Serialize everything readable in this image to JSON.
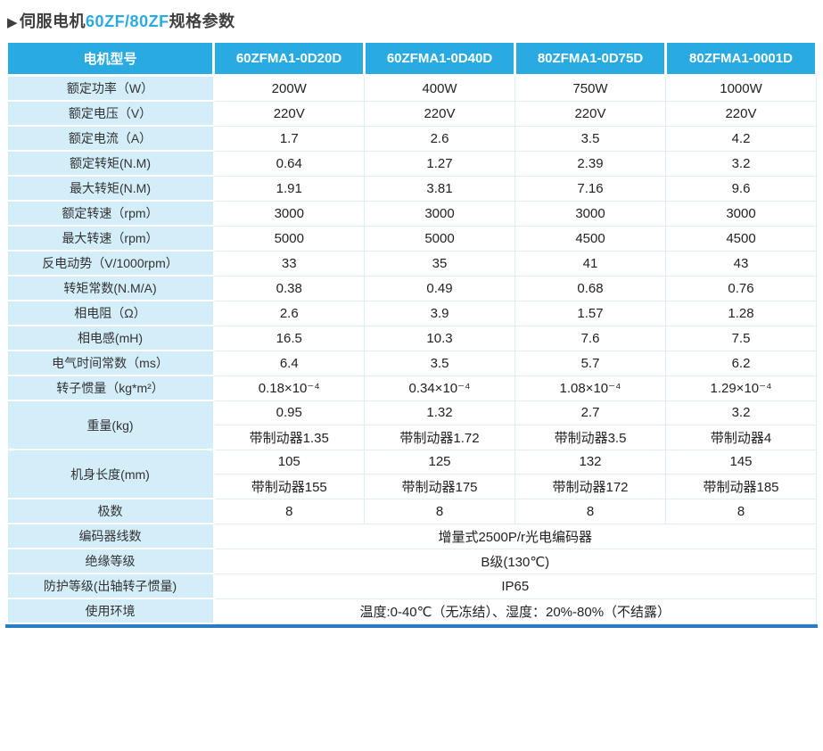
{
  "title": {
    "arrow": "▶",
    "part1": "伺服电机",
    "accent": "60ZF/80ZF",
    "part2": "规格参数"
  },
  "colors": {
    "accent": "#29abe2",
    "header_bg": "#29abe2",
    "label_bg": "#d3edf9",
    "bottom_line": "#2b7cc2"
  },
  "table": {
    "header": [
      "电机型号",
      "60ZFMA1-0D20D",
      "60ZFMA1-0D40D",
      "80ZFMA1-0D75D",
      "80ZFMA1-0001D"
    ],
    "rows": [
      {
        "type": "normal",
        "label": "额定功率（W）",
        "values": [
          "200W",
          "400W",
          "750W",
          "1000W"
        ]
      },
      {
        "type": "normal",
        "label": "额定电压（V）",
        "values": [
          "220V",
          "220V",
          "220V",
          "220V"
        ]
      },
      {
        "type": "normal",
        "label": "额定电流（A）",
        "values": [
          "1.7",
          "2.6",
          "3.5",
          "4.2"
        ]
      },
      {
        "type": "normal",
        "label": "额定转矩(N.M)",
        "values": [
          "0.64",
          "1.27",
          "2.39",
          "3.2"
        ]
      },
      {
        "type": "normal",
        "label": "最大转矩(N.M)",
        "values": [
          "1.91",
          "3.81",
          "7.16",
          "9.6"
        ]
      },
      {
        "type": "normal",
        "label": "额定转速（rpm）",
        "values": [
          "3000",
          "3000",
          "3000",
          "3000"
        ]
      },
      {
        "type": "normal",
        "label": "最大转速（rpm）",
        "values": [
          "5000",
          "5000",
          "4500",
          "4500"
        ]
      },
      {
        "type": "normal",
        "label": "反电动势（V/1000rpm）",
        "values": [
          "33",
          "35",
          "41",
          "43"
        ]
      },
      {
        "type": "normal",
        "label": "转矩常数(N.M/A)",
        "values": [
          "0.38",
          "0.49",
          "0.68",
          "0.76"
        ]
      },
      {
        "type": "normal",
        "label": "相电阻（Ω）",
        "values": [
          "2.6",
          "3.9",
          "1.57",
          "1.28"
        ]
      },
      {
        "type": "normal",
        "label": "相电感(mH)",
        "values": [
          "16.5",
          "10.3",
          "7.6",
          "7.5"
        ]
      },
      {
        "type": "normal",
        "label": "电气时间常数（ms）",
        "values": [
          "6.4",
          "3.5",
          "5.7",
          "6.2"
        ]
      },
      {
        "type": "normal",
        "label": "转子惯量（kg*m²）",
        "values": [
          "0.18×10⁻⁴",
          "0.34×10⁻⁴",
          "1.08×10⁻⁴",
          "1.29×10⁻⁴"
        ]
      },
      {
        "type": "group",
        "label": "重量(kg)",
        "subrows": [
          [
            "0.95",
            "1.32",
            "2.7",
            "3.2"
          ],
          [
            "带制动器1.35",
            "带制动器1.72",
            "带制动器3.5",
            "带制动器4"
          ]
        ]
      },
      {
        "type": "group",
        "label": "机身长度(mm)",
        "subrows": [
          [
            "105",
            "125",
            "132",
            "145"
          ],
          [
            "带制动器155",
            "带制动器175",
            "带制动器172",
            "带制动器185"
          ]
        ]
      },
      {
        "type": "normal",
        "label": "极数",
        "values": [
          "8",
          "8",
          "8",
          "8"
        ]
      },
      {
        "type": "span",
        "label": "编码器线数",
        "value": "增量式2500P/r光电编码器"
      },
      {
        "type": "span",
        "label": "绝缘等级",
        "value": "B级(130℃)"
      },
      {
        "type": "span",
        "label": "防护等级(出轴转子惯量)",
        "value": "IP65"
      },
      {
        "type": "span",
        "label": "使用环境",
        "value": "温度:0-40℃（无冻结）、湿度：20%-80%（不结露）"
      }
    ]
  }
}
